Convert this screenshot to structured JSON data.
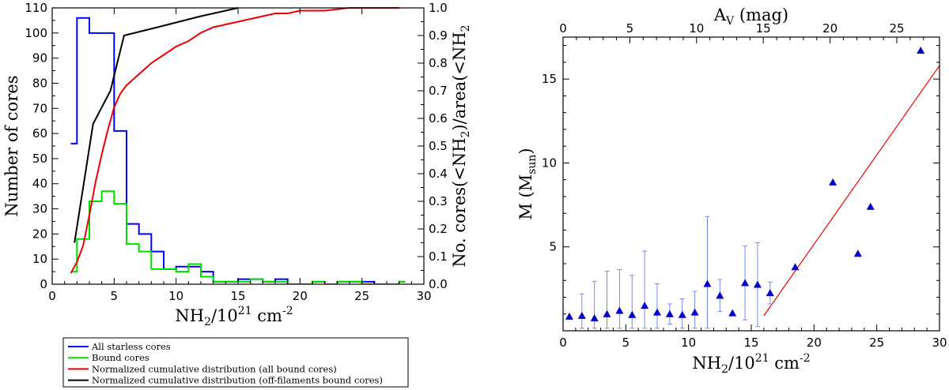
{
  "chart_data": [
    {
      "type": "line",
      "panel": "left",
      "title": "",
      "xlabel_main": "NH",
      "xlabel_sub": "2",
      "xlabel_rest": "/10",
      "xlabel_sup": "21",
      "xlabel_unit": " cm",
      "xlabel_unit_sup": "-2",
      "ylabel": "Number of cores",
      "y2label_pre": "No. cores(<NH",
      "y2label_sub1": "2",
      "y2label_mid": ")/area(<NH",
      "y2label_sub2": "2",
      "xlim": [
        0,
        30
      ],
      "ylim": [
        0,
        110
      ],
      "y2lim": [
        0,
        1.0
      ],
      "xticks": [
        "0",
        "5",
        "10",
        "15",
        "20",
        "25",
        "30"
      ],
      "yticks": [
        "0",
        "10",
        "20",
        "30",
        "40",
        "50",
        "60",
        "70",
        "80",
        "90",
        "100",
        "110"
      ],
      "y2ticks": [
        "0.0",
        "0.1",
        "0.2",
        "0.3",
        "0.4",
        "0.5",
        "0.6",
        "0.7",
        "0.8",
        "0.9",
        "1.0"
      ],
      "legend_position": "below",
      "series": [
        {
          "name": "All starless cores",
          "color": "#0000ff",
          "kind": "step",
          "axis": "left",
          "edges": [
            1.5,
            2,
            3,
            4,
            5,
            6,
            7,
            8,
            9,
            10,
            11,
            12,
            13,
            14,
            15,
            16,
            17,
            18,
            19,
            20,
            21,
            22,
            23,
            24,
            25,
            26,
            27,
            28
          ],
          "values": [
            56,
            106,
            100,
            100,
            61,
            24,
            20,
            13,
            6,
            7,
            7,
            5,
            1,
            1,
            2,
            2,
            1,
            2,
            0,
            0,
            1,
            0,
            1,
            1,
            1,
            0,
            0,
            1
          ]
        },
        {
          "name": "Bound cores",
          "color": "#00dd00",
          "kind": "step",
          "axis": "left",
          "edges": [
            1.5,
            2,
            3,
            4,
            5,
            6,
            7,
            8,
            9,
            10,
            11,
            12,
            13,
            14,
            15,
            16,
            17,
            18,
            19,
            20,
            21,
            22,
            23,
            24,
            25,
            26,
            27,
            28
          ],
          "values": [
            5,
            18,
            33,
            37,
            32,
            16,
            13,
            6,
            6,
            5,
            8,
            3,
            1,
            1,
            1,
            2,
            1,
            1,
            0,
            0,
            1,
            0,
            1,
            1,
            0,
            0,
            0,
            1
          ]
        },
        {
          "name": "Normalized cumulative distribution (all bound cores)",
          "color": "#ee0000",
          "kind": "line",
          "axis": "right",
          "x": [
            1.5,
            2,
            2.5,
            3,
            3.5,
            4,
            4.5,
            5,
            5.5,
            6,
            6.5,
            7,
            7.5,
            8,
            9,
            10,
            11,
            12,
            13,
            14,
            15,
            16,
            17,
            18,
            19,
            20,
            22,
            24,
            26,
            28
          ],
          "y": [
            0.04,
            0.08,
            0.14,
            0.25,
            0.37,
            0.47,
            0.56,
            0.64,
            0.69,
            0.72,
            0.74,
            0.76,
            0.78,
            0.8,
            0.83,
            0.86,
            0.88,
            0.91,
            0.93,
            0.94,
            0.95,
            0.96,
            0.97,
            0.98,
            0.98,
            0.99,
            0.99,
            1.0,
            1.0,
            1.0
          ]
        },
        {
          "name": "Normalized cumulative distribution (off-filaments bound cores)",
          "color": "#000000",
          "kind": "line",
          "axis": "right",
          "x": [
            1.8,
            3.3,
            4.7,
            5.8,
            8.5,
            12,
            15
          ],
          "y": [
            0.15,
            0.58,
            0.7,
            0.9,
            0.93,
            0.97,
            1.0
          ]
        }
      ]
    },
    {
      "type": "scatter",
      "panel": "right",
      "title": "",
      "xlabel_main": "NH",
      "xlabel_sub": "2",
      "xlabel_rest": "/10",
      "xlabel_sup": "21",
      "xlabel_unit": " cm",
      "xlabel_unit_sup": "-2",
      "top_xlabel_main": "A",
      "top_xlabel_sub": "V",
      "top_xlabel_rest": " (mag)",
      "ylabel_main": "M (M",
      "ylabel_sub": "sun",
      "ylabel_rest": ")",
      "xlim": [
        0,
        30
      ],
      "ylim": [
        0,
        17.5
      ],
      "top_xlim": [
        0,
        28.2
      ],
      "xticks": [
        "0",
        "5",
        "10",
        "15",
        "20",
        "25",
        "30"
      ],
      "yticks": [
        "5",
        "10",
        "15"
      ],
      "top_xticks": [
        "0",
        "5",
        "10",
        "15",
        "20",
        "25"
      ],
      "marker": "triangle",
      "marker_color": "#0000cc",
      "errorbar_color": "#7788ee",
      "fit_color": "#ee0000",
      "points": [
        {
          "x": 0.5,
          "y": 0.85,
          "err": 0.0
        },
        {
          "x": 1.5,
          "y": 0.9,
          "err": 1.3
        },
        {
          "x": 2.5,
          "y": 0.75,
          "err": 2.2
        },
        {
          "x": 3.5,
          "y": 1.0,
          "err": 2.55
        },
        {
          "x": 4.5,
          "y": 1.2,
          "err": 2.45
        },
        {
          "x": 5.5,
          "y": 0.95,
          "err": 2.35
        },
        {
          "x": 6.5,
          "y": 1.5,
          "err": 3.25
        },
        {
          "x": 7.5,
          "y": 1.1,
          "err": 1.7
        },
        {
          "x": 8.5,
          "y": 1.0,
          "err": 0.6
        },
        {
          "x": 9.5,
          "y": 0.95,
          "err": 0.95
        },
        {
          "x": 10.5,
          "y": 1.1,
          "err": 1.25
        },
        {
          "x": 11.5,
          "y": 2.8,
          "err": 4.0
        },
        {
          "x": 12.5,
          "y": 2.1,
          "err": 0.95
        },
        {
          "x": 13.5,
          "y": 1.05,
          "err": 0.0
        },
        {
          "x": 14.5,
          "y": 2.85,
          "err": 2.2
        },
        {
          "x": 15.5,
          "y": 2.75,
          "err": 2.5
        },
        {
          "x": 16.5,
          "y": 2.25,
          "err": 0.65
        },
        {
          "x": 18.5,
          "y": 3.8,
          "err": 0.0
        },
        {
          "x": 21.5,
          "y": 8.85,
          "err": 0.0
        },
        {
          "x": 23.5,
          "y": 4.6,
          "err": 0.0
        },
        {
          "x": 24.5,
          "y": 7.4,
          "err": 0.0
        },
        {
          "x": 28.5,
          "y": 16.7,
          "err": 0.0
        }
      ],
      "fit_line": {
        "x": [
          16,
          30
        ],
        "y": [
          0.9,
          15.8
        ]
      }
    }
  ]
}
